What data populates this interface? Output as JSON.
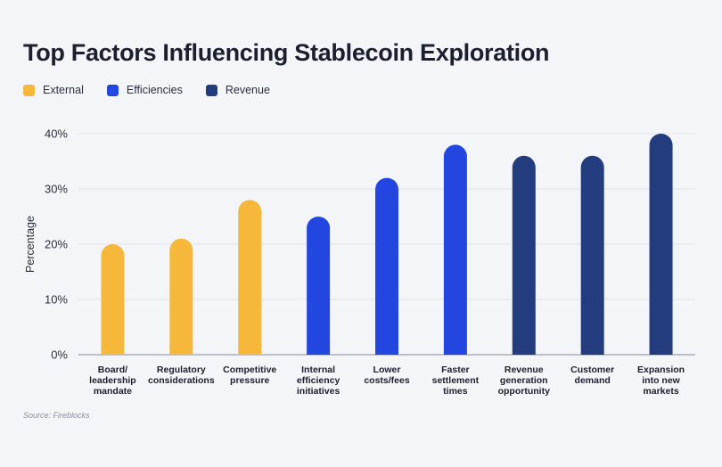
{
  "title": "Top Factors Influencing Stablecoin Exploration",
  "legend": [
    {
      "label": "External",
      "color": "#f5b83b"
    },
    {
      "label": "Efficiencies",
      "color": "#2346e0"
    },
    {
      "label": "Revenue",
      "color": "#233c7e"
    }
  ],
  "source": "Source: Fireblocks",
  "chart_data": {
    "type": "bar",
    "title": "Top Factors Influencing Stablecoin Exploration",
    "xlabel": "",
    "ylabel": "Percentage",
    "ylim": [
      0,
      40
    ],
    "yticks": [
      0,
      10,
      20,
      30,
      40
    ],
    "ytick_labels": [
      "0%",
      "10%",
      "20%",
      "30%",
      "40%"
    ],
    "grid": true,
    "legend_position": "top-left",
    "categories": [
      [
        "Board/",
        "leadership",
        "mandate"
      ],
      [
        "Regulatory",
        "considerations"
      ],
      [
        "Competitive",
        "pressure"
      ],
      [
        "Internal",
        "efficiency",
        "initiatives"
      ],
      [
        "Lower",
        "costs/fees"
      ],
      [
        "Faster",
        "settlement",
        "times"
      ],
      [
        "Revenue",
        "generation",
        "opportunity"
      ],
      [
        "Customer",
        "demand"
      ],
      [
        "Expansion",
        "into new",
        "markets"
      ]
    ],
    "values": [
      20,
      21,
      28,
      25,
      32,
      38,
      36,
      36,
      40
    ],
    "groups": [
      "External",
      "External",
      "External",
      "Efficiencies",
      "Efficiencies",
      "Efficiencies",
      "Revenue",
      "Revenue",
      "Revenue"
    ]
  }
}
